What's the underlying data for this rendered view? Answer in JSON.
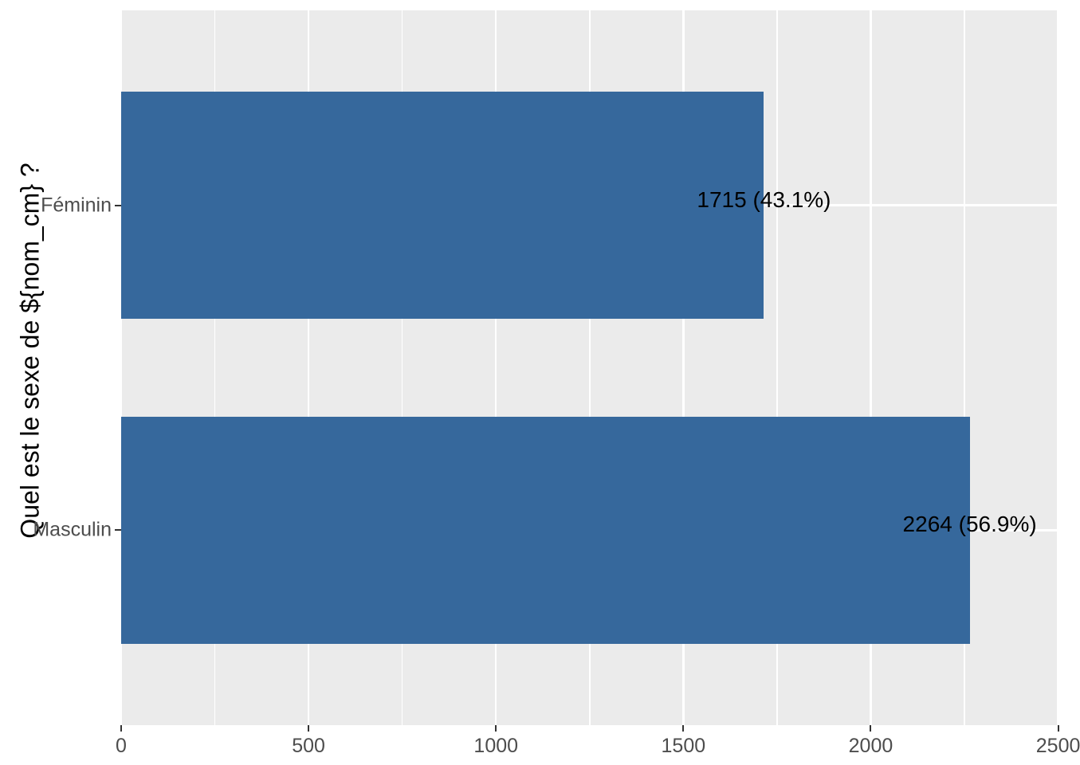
{
  "chart_data": {
    "type": "bar",
    "orientation": "horizontal",
    "title": "",
    "xlabel": "",
    "ylabel": "Quel est le sexe de ${nom_cm} ?",
    "categories": [
      "Féminin",
      "Masculin"
    ],
    "values": [
      1715,
      2264
    ],
    "percentages": [
      43.1,
      56.9
    ],
    "bar_labels": [
      "1715 (43.1%)",
      "2264 (56.9%)"
    ],
    "xlim": [
      0,
      2503
    ],
    "x_major_ticks": [
      0,
      500,
      1000,
      1500,
      2000,
      2500
    ],
    "x_tick_labels": [
      "0",
      "500",
      "1000",
      "1500",
      "2000",
      "2500"
    ],
    "x_minor_ticks": [
      250,
      750,
      1250,
      1750,
      2250
    ],
    "grid": "on",
    "legend_position": "none",
    "colors": {
      "bar": "#36689C",
      "panel_background": "#EBEBEB",
      "grid_major": "#FFFFFF",
      "grid_minor": "#FFFFFF",
      "axis_text": "#4D4D4D",
      "tick_mark": "#333333",
      "bar_label_text": "#000000",
      "axis_title_text": "#000000",
      "figure_background": "#FFFFFF"
    }
  }
}
